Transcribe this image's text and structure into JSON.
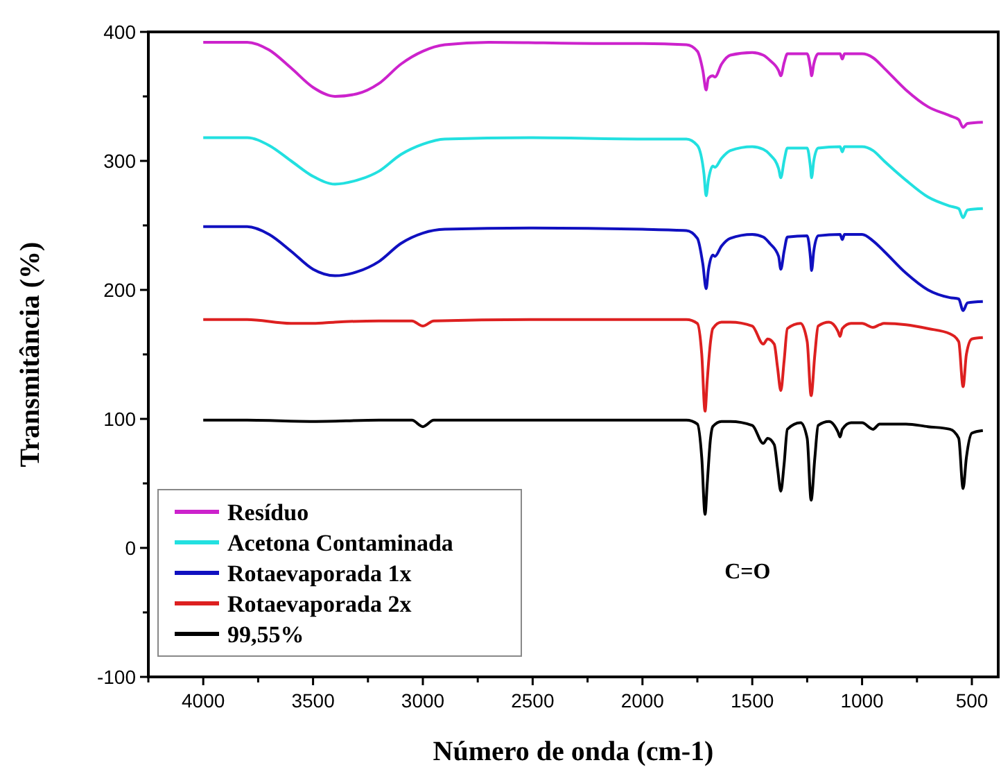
{
  "chart_data": {
    "type": "line",
    "xlabel": "Número de onda (cm-1)",
    "ylabel": "Transmitância (%)",
    "xlim": [
      4250,
      380
    ],
    "ylim": [
      -100,
      400
    ],
    "xticks": [
      {
        "value": 4250,
        "label": null
      },
      4000,
      {
        "value": 3750,
        "label": null
      },
      3500,
      {
        "value": 3250,
        "label": null
      },
      3000,
      {
        "value": 2750,
        "label": null
      },
      2500,
      {
        "value": 2250,
        "label": null
      },
      2000,
      {
        "value": 1750,
        "label": null
      },
      1500,
      {
        "value": 1250,
        "label": null
      },
      1000,
      {
        "value": 750,
        "label": null
      },
      500
    ],
    "yticks": [
      -100,
      {
        "value": -50,
        "label": null
      },
      0,
      {
        "value": 50,
        "label": null
      },
      100,
      {
        "value": 150,
        "label": null
      },
      200,
      {
        "value": 250,
        "label": null
      },
      300,
      {
        "value": 350,
        "label": null
      },
      400
    ],
    "legend": "bottom left",
    "grid": false,
    "marker": "none",
    "line_style": "solid",
    "annotations": [
      "C=O"
    ],
    "series": [
      {
        "name": "Resíduo",
        "color": "#cc22cc",
        "x": [
          4000,
          3800,
          3700,
          3600,
          3500,
          3400,
          3300,
          3200,
          3100,
          3000,
          2900,
          2700,
          2200,
          2000,
          1800,
          1750,
          1725,
          1710,
          1700,
          1680,
          1670,
          1640,
          1600,
          1500,
          1450,
          1420,
          1380,
          1370,
          1355,
          1340,
          1250,
          1235,
          1230,
          1220,
          1200,
          1100,
          1090,
          1080,
          1000,
          950,
          900,
          800,
          700,
          600,
          560,
          540,
          520,
          450
        ],
        "values": [
          392,
          392,
          386,
          372,
          357,
          350,
          352,
          360,
          375,
          385,
          390,
          392,
          391,
          391,
          390,
          385,
          370,
          355,
          364,
          366,
          365,
          375,
          382,
          384,
          382,
          378,
          370,
          366,
          376,
          383,
          383,
          372,
          366,
          375,
          383,
          383,
          379,
          383,
          383,
          380,
          372,
          355,
          342,
          335,
          332,
          326,
          329,
          330
        ]
      },
      {
        "name": "Acetona Contaminada",
        "color": "#22e0e0",
        "x": [
          4000,
          3800,
          3700,
          3600,
          3500,
          3400,
          3300,
          3200,
          3100,
          3000,
          2900,
          2500,
          2000,
          1800,
          1750,
          1720,
          1710,
          1700,
          1680,
          1670,
          1640,
          1600,
          1500,
          1450,
          1420,
          1380,
          1370,
          1355,
          1340,
          1250,
          1235,
          1230,
          1220,
          1200,
          1100,
          1090,
          1080,
          1000,
          950,
          900,
          800,
          700,
          600,
          560,
          540,
          520,
          450
        ],
        "values": [
          318,
          318,
          312,
          300,
          288,
          282,
          285,
          292,
          305,
          313,
          317,
          318,
          317,
          317,
          312,
          290,
          273,
          285,
          296,
          295,
          302,
          308,
          311,
          309,
          305,
          294,
          287,
          300,
          310,
          310,
          295,
          287,
          300,
          310,
          311,
          307,
          311,
          311,
          308,
          300,
          285,
          272,
          265,
          263,
          256,
          262,
          263
        ]
      },
      {
        "name": "Rotaevaporada 1x",
        "color": "#1010c0",
        "x": [
          4000,
          3800,
          3700,
          3600,
          3500,
          3400,
          3300,
          3200,
          3100,
          3000,
          2900,
          2500,
          2000,
          1800,
          1750,
          1725,
          1710,
          1700,
          1680,
          1670,
          1640,
          1600,
          1500,
          1450,
          1420,
          1380,
          1370,
          1355,
          1340,
          1250,
          1235,
          1230,
          1220,
          1200,
          1100,
          1090,
          1080,
          1000,
          950,
          900,
          800,
          700,
          600,
          560,
          540,
          520,
          450
        ],
        "values": [
          249,
          249,
          243,
          230,
          216,
          211,
          214,
          222,
          236,
          244,
          247,
          248,
          247,
          246,
          240,
          220,
          201,
          215,
          227,
          226,
          234,
          240,
          243,
          241,
          236,
          226,
          216,
          230,
          241,
          242,
          225,
          215,
          230,
          242,
          243,
          239,
          243,
          243,
          238,
          230,
          213,
          200,
          194,
          193,
          184,
          190,
          191
        ]
      },
      {
        "name": "Rotaevaporada 2x",
        "color": "#dd2020",
        "x": [
          4000,
          3800,
          3600,
          3500,
          3400,
          3200,
          3050,
          3000,
          2950,
          2500,
          2000,
          1800,
          1750,
          1730,
          1715,
          1705,
          1690,
          1680,
          1640,
          1600,
          1500,
          1450,
          1430,
          1400,
          1385,
          1370,
          1355,
          1340,
          1280,
          1250,
          1232,
          1215,
          1200,
          1150,
          1110,
          1100,
          1090,
          1050,
          1000,
          950,
          920,
          900,
          800,
          700,
          600,
          560,
          540,
          525,
          500,
          450
        ],
        "values": [
          177,
          177,
          174,
          174,
          175,
          176,
          176,
          172,
          176,
          177,
          177,
          177,
          174,
          150,
          106,
          130,
          160,
          170,
          175,
          175,
          172,
          158,
          162,
          158,
          140,
          122,
          145,
          170,
          174,
          160,
          118,
          150,
          172,
          175,
          168,
          164,
          170,
          174,
          174,
          171,
          173,
          174,
          173,
          170,
          166,
          160,
          125,
          150,
          162,
          163
        ]
      },
      {
        "name": "99,55%",
        "color": "#000000",
        "x": [
          4000,
          3800,
          3500,
          3200,
          3050,
          3000,
          2950,
          2000,
          1800,
          1750,
          1730,
          1715,
          1705,
          1690,
          1680,
          1640,
          1600,
          1500,
          1450,
          1430,
          1400,
          1385,
          1370,
          1355,
          1340,
          1280,
          1250,
          1232,
          1215,
          1200,
          1150,
          1110,
          1100,
          1090,
          1050,
          1000,
          950,
          920,
          800,
          700,
          600,
          560,
          540,
          525,
          500,
          450
        ],
        "values": [
          99,
          99,
          98,
          99,
          99,
          94,
          99,
          99,
          99,
          96,
          70,
          26,
          50,
          85,
          94,
          98,
          98,
          95,
          81,
          85,
          80,
          62,
          44,
          65,
          92,
          97,
          85,
          37,
          70,
          95,
          98,
          90,
          86,
          92,
          97,
          97,
          92,
          96,
          96,
          94,
          92,
          85,
          46,
          70,
          89,
          91
        ]
      }
    ]
  }
}
